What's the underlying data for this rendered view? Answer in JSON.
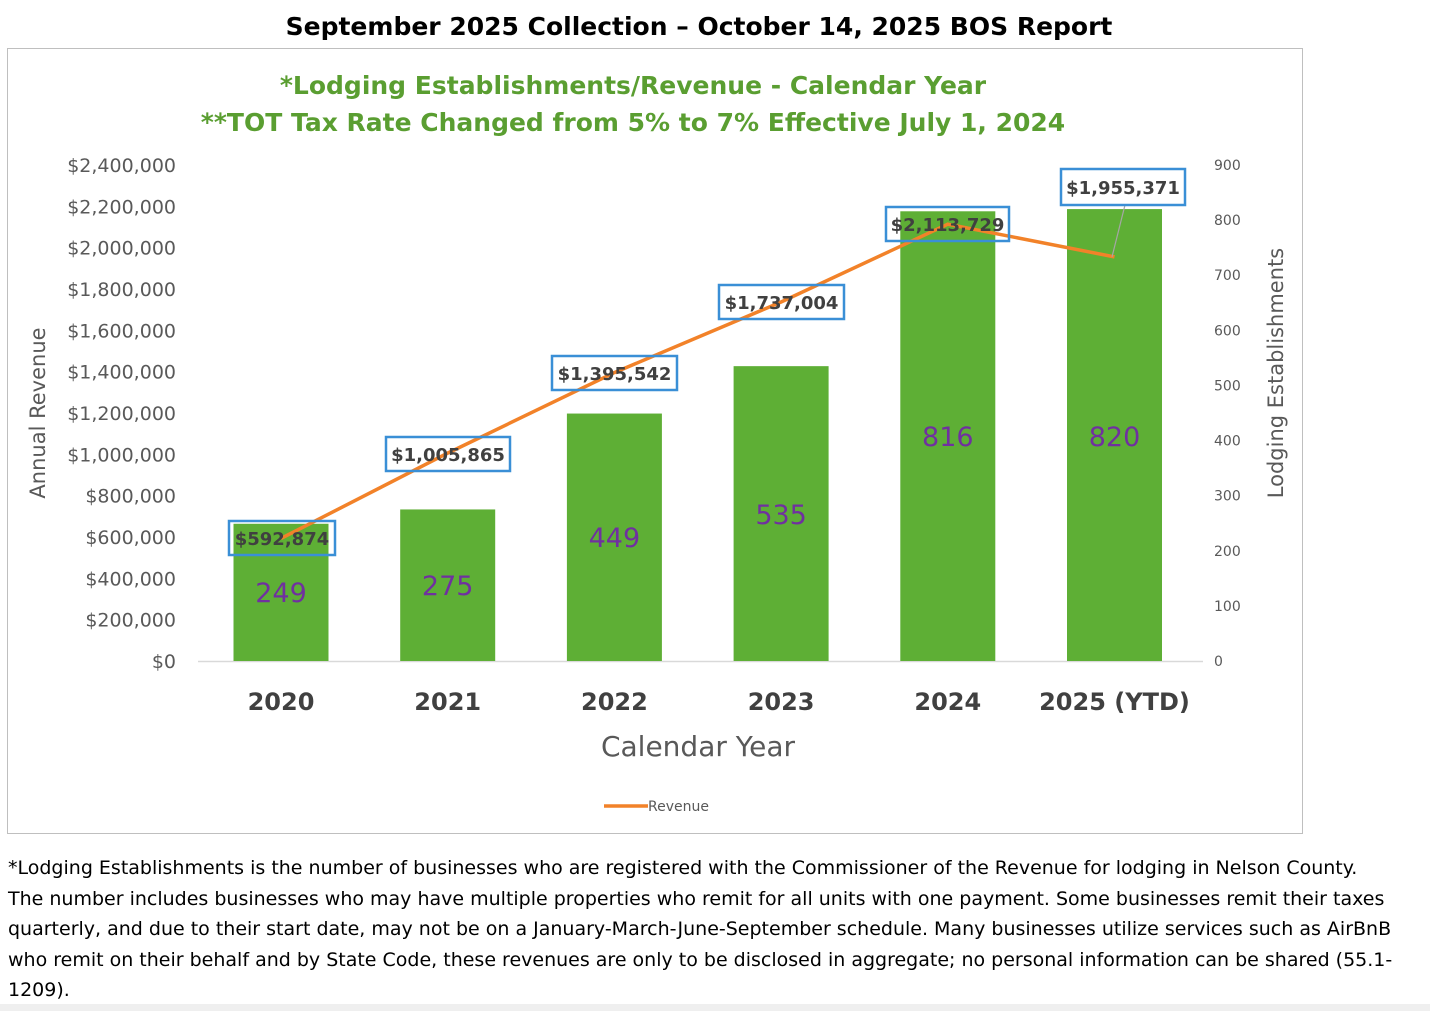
{
  "page": {
    "title": "September  2025 Collection – October 14, 2025 BOS Report",
    "footnote": "*Lodging Establishments is the number of businesses who are registered with the Commissioner of the Revenue for lodging in Nelson County. The number includes businesses who may have multiple properties who remit for all units with one payment. Some businesses remit their taxes quarterly, and due to their start date, may not be on a January-March-June-September schedule. Many businesses utilize services such as AirBnB who remit on their behalf and by State Code, these revenues are only to be disclosed in aggregate; no personal information can be shared (55.1-1209)."
  },
  "chart_data": {
    "type": "bar",
    "title": "*Lodging Establishments/Revenue - Calendar Year",
    "subtitle": "**TOT Tax Rate Changed from 5% to 7% Effective July 1, 2024",
    "xlabel": "Calendar Year",
    "ylabel": "Annual Revenue",
    "y2label": "Lodging Establishments",
    "categories": [
      "2020",
      "2021",
      "2022",
      "2023",
      "2024",
      "2025 (YTD)"
    ],
    "series": [
      {
        "name": "",
        "type": "bar",
        "axis": "y2",
        "values": [
          249,
          275,
          449,
          535,
          816,
          820
        ],
        "labels": [
          "249",
          "275",
          "449",
          "535",
          "816",
          "820"
        ],
        "color": "#5eaf35"
      },
      {
        "name": "Revenue",
        "type": "line",
        "axis": "y",
        "values": [
          592874,
          1005865,
          1395542,
          1737004,
          2113729,
          1955371
        ],
        "labels": [
          "$592,874",
          "$1,005,865",
          "$1,395,542",
          "$1,737,004",
          "$2,113,729",
          "$1,955,371"
        ],
        "color": "#f28229"
      }
    ],
    "ylim": [
      0,
      2400000
    ],
    "y2lim": [
      0,
      900
    ],
    "yticks": [
      "$0",
      "$200,000",
      "$400,000",
      "$600,000",
      "$800,000",
      "$1,000,000",
      "$1,200,000",
      "$1,400,000",
      "$1,600,000",
      "$1,800,000",
      "$2,000,000",
      "$2,200,000",
      "$2,400,000"
    ],
    "y2ticks": [
      "0",
      "100",
      "200",
      "300",
      "400",
      "500",
      "600",
      "700",
      "800",
      "900"
    ],
    "grid": false,
    "legend_position": "bottom",
    "colors": {
      "title": "#5a9e31",
      "bar": "#5eaf35",
      "bar_label": "#7030a0",
      "line": "#f28229",
      "label_box": "#3a8fd6"
    }
  }
}
